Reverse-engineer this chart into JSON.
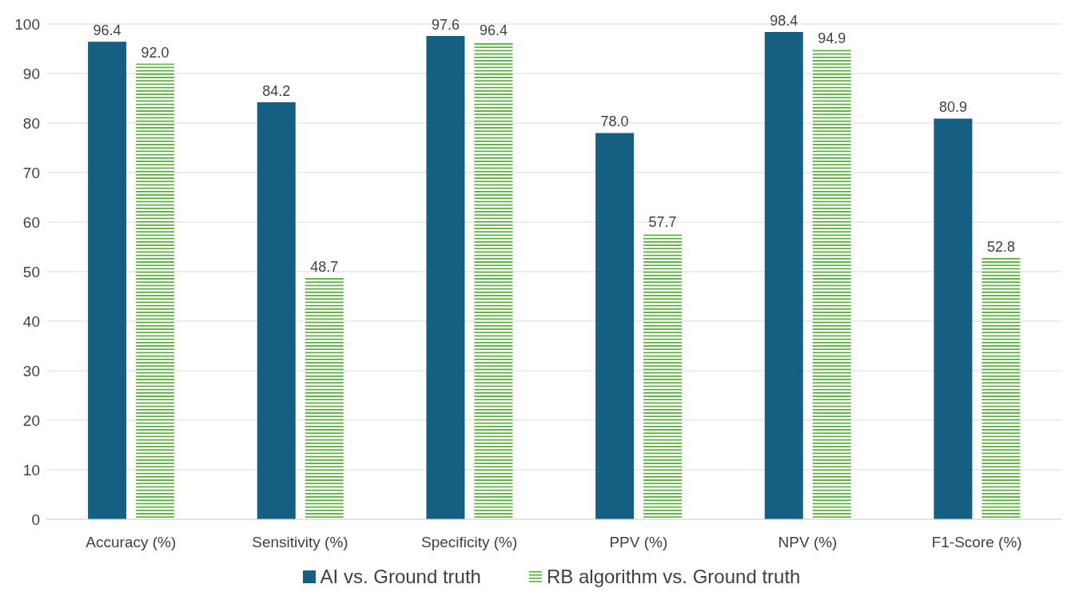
{
  "chart_data": {
    "type": "bar",
    "categories": [
      "Accuracy (%)",
      "Sensitivity (%)",
      "Specificity (%)",
      "PPV (%)",
      "NPV (%)",
      "F1-Score (%)"
    ],
    "series": [
      {
        "name": "AI vs. Ground truth",
        "color": "#156082",
        "values": [
          96.4,
          84.2,
          97.6,
          78.0,
          98.4,
          80.9
        ],
        "value_labels": [
          "96.4",
          "84.2",
          "97.6",
          "78.0",
          "98.4",
          "80.9"
        ]
      },
      {
        "name": "RB algorithm vs. Ground truth",
        "color": "#4ea72e",
        "values": [
          92.0,
          48.7,
          96.4,
          57.7,
          94.9,
          52.8
        ],
        "value_labels": [
          "92.0",
          "48.7",
          "96.4",
          "57.7",
          "94.9",
          "52.8"
        ]
      }
    ],
    "ylim": [
      0,
      100
    ],
    "yticks": [
      0,
      10,
      20,
      30,
      40,
      50,
      60,
      70,
      80,
      90,
      100
    ],
    "grid": "y",
    "legend": "bottom"
  }
}
